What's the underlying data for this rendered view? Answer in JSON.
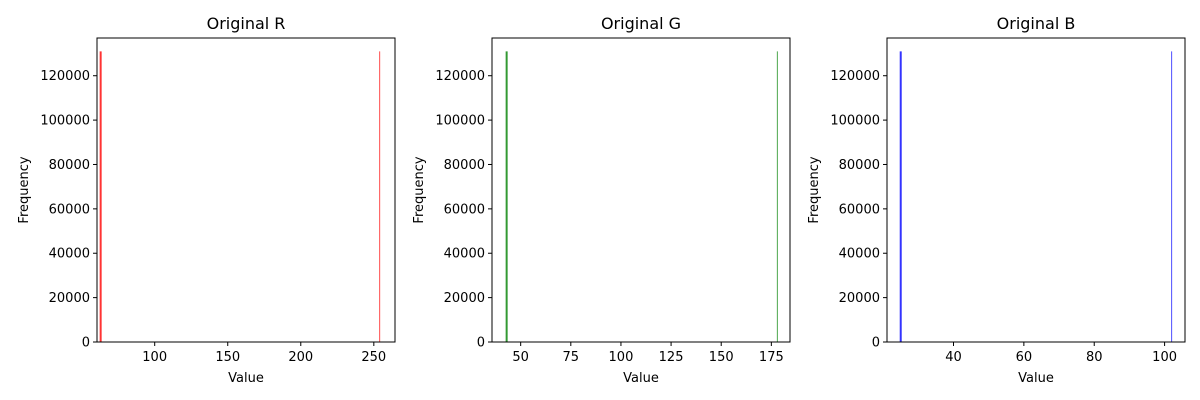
{
  "chart_data": [
    {
      "type": "bar",
      "title": "Original R",
      "xlabel": "Value",
      "ylabel": "Frequency",
      "xlim": [
        60.5,
        264.5
      ],
      "ylim": [
        0,
        137000
      ],
      "x_ticks": [
        100,
        150,
        200,
        250
      ],
      "y_ticks": [
        0,
        20000,
        40000,
        60000,
        80000,
        100000,
        120000
      ],
      "bars": [
        {
          "x": 63,
          "value": 131000
        },
        {
          "x": 254,
          "value": 131000
        }
      ],
      "color": "#ff0000",
      "grid": false
    },
    {
      "type": "bar",
      "title": "Original G",
      "xlabel": "Value",
      "ylabel": "Frequency",
      "xlim": [
        35.7,
        184.3
      ],
      "ylim": [
        0,
        137000
      ],
      "x_ticks": [
        50,
        75,
        100,
        125,
        150,
        175
      ],
      "y_ticks": [
        0,
        20000,
        40000,
        60000,
        80000,
        100000,
        120000
      ],
      "bars": [
        {
          "x": 43,
          "value": 131000
        },
        {
          "x": 178,
          "value": 131000
        }
      ],
      "color": "#008000",
      "grid": false
    },
    {
      "type": "bar",
      "title": "Original B",
      "xlabel": "Value",
      "ylabel": "Frequency",
      "xlim": [
        21.1,
        105.8
      ],
      "ylim": [
        0,
        137000
      ],
      "x_ticks": [
        40,
        60,
        80,
        100
      ],
      "y_ticks": [
        0,
        20000,
        40000,
        60000,
        80000,
        100000,
        120000
      ],
      "bars": [
        {
          "x": 25,
          "value": 131000
        },
        {
          "x": 102,
          "value": 131000
        }
      ],
      "color": "#0000ff",
      "grid": false
    }
  ]
}
